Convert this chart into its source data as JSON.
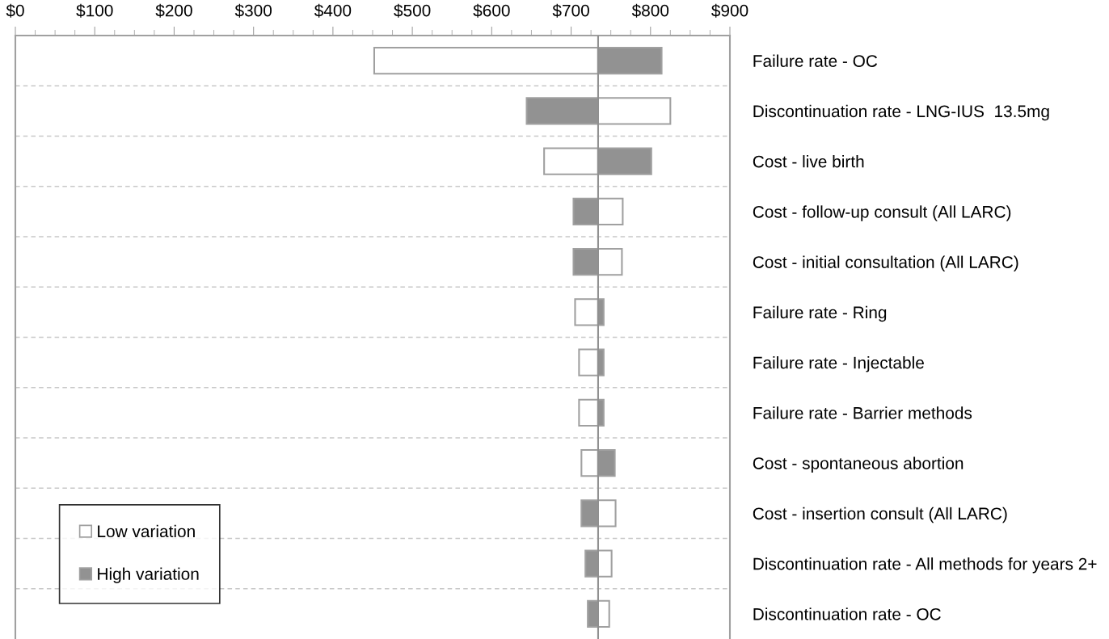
{
  "chart_data": {
    "type": "bar",
    "orientation": "horizontal",
    "categories": [
      "Failure rate - OC",
      "Discontinuation rate - LNG-IUS  13.5mg",
      "Cost - live birth",
      "Cost - follow-up consult (All LARC)",
      "Cost - initial consultation (All LARC)",
      "Failure rate - Ring",
      "Failure rate - Injectable",
      "Failure rate - Barrier methods",
      "Cost - spontaneous abortion",
      "Cost - insertion consult (All LARC)",
      "Discontinuation rate - All methods for years 2+",
      "Discontinuation rate - OC"
    ],
    "series": [
      {
        "name": "Low variation",
        "color": "#ffffff",
        "base": [
          452,
          734,
          666,
          734,
          734,
          705,
          710,
          710,
          713,
          734,
          734,
          734
        ],
        "values": [
          282,
          91,
          68,
          31,
          30,
          29,
          24,
          24,
          21,
          22,
          17,
          14
        ]
      },
      {
        "name": "High variation",
        "color": "#929292",
        "base": [
          734,
          644,
          734,
          703,
          703,
          734,
          734,
          734,
          734,
          713,
          718,
          721
        ],
        "values": [
          80,
          90,
          67,
          31,
          31,
          7,
          7,
          7,
          21,
          21,
          16,
          13
        ]
      }
    ],
    "ref_lines": [
      {
        "axis": "x",
        "value": 734,
        "color": "#909090"
      }
    ],
    "xlim": [
      0,
      900
    ],
    "xticks": [
      {
        "value": 0,
        "label": "$0"
      },
      {
        "value": 100,
        "label": "$100"
      },
      {
        "value": 200,
        "label": "$200"
      },
      {
        "value": 300,
        "label": "$300"
      },
      {
        "value": 400,
        "label": "$400"
      },
      {
        "value": 500,
        "label": "$500"
      },
      {
        "value": 600,
        "label": "$600"
      },
      {
        "value": 700,
        "label": "$700"
      },
      {
        "value": 800,
        "label": "$800"
      },
      {
        "value": 900,
        "label": "$900"
      }
    ],
    "grid": "y",
    "legend": "bottom left"
  }
}
